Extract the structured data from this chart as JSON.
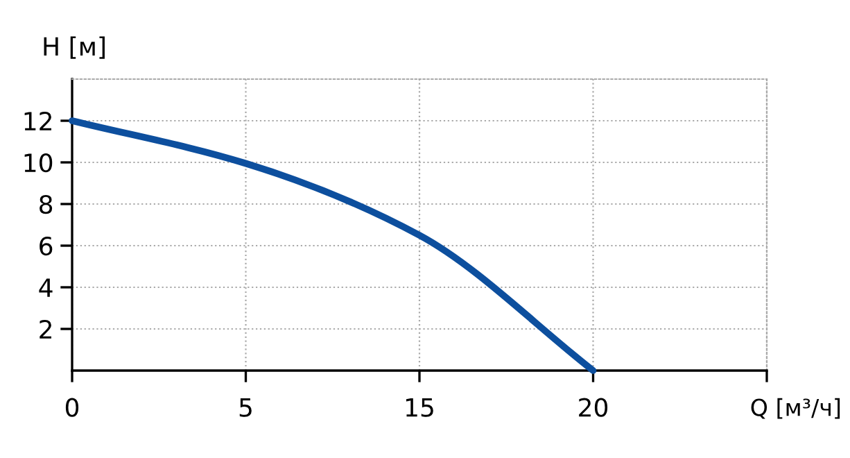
{
  "chart_data": {
    "type": "line",
    "xlabel": "Q [м³/ч]",
    "ylabel": "H [м]",
    "categories": [
      "0",
      "5",
      "15",
      "20",
      null
    ],
    "series": [
      {
        "color": "#0d4f9e",
        "values": [
          12,
          9.95,
          6.5,
          0,
          null
        ]
      }
    ],
    "ylim": [
      0,
      14
    ],
    "yticks": [
      2,
      4,
      6,
      8,
      10,
      12
    ],
    "grid": true,
    "marker": "none",
    "line_style": "solid"
  }
}
